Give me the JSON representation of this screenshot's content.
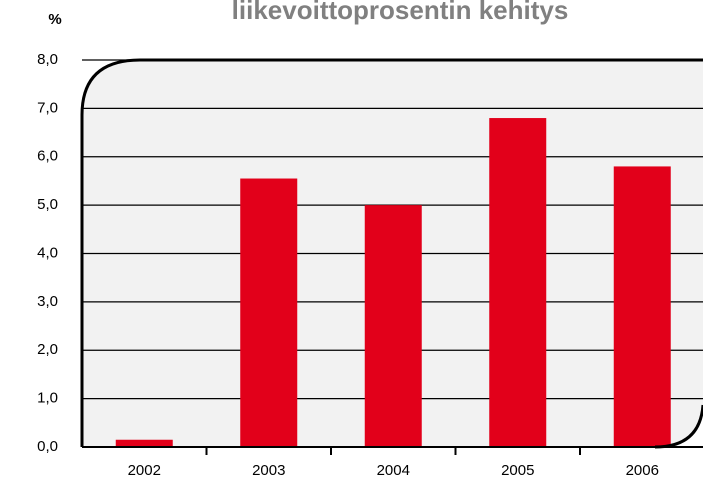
{
  "chart_data": {
    "type": "bar",
    "title": "liikevoittoprosentin kehitys",
    "y_label": "%",
    "categories": [
      "2002",
      "2003",
      "2004",
      "2005",
      "2006"
    ],
    "values": [
      0.15,
      5.55,
      5.0,
      6.8,
      5.8
    ],
    "color": "#e2001a",
    "ylim": [
      0,
      8
    ],
    "yticks": [
      {
        "value": 0,
        "label": "0,0"
      },
      {
        "value": 1,
        "label": "1,0"
      },
      {
        "value": 2,
        "label": "2,0"
      },
      {
        "value": 3,
        "label": "3,0"
      },
      {
        "value": 4,
        "label": "4,0"
      },
      {
        "value": 5,
        "label": "5,0"
      },
      {
        "value": 6,
        "label": "6,0"
      },
      {
        "value": 7,
        "label": "7,0"
      },
      {
        "value": 8,
        "label": "8,0"
      }
    ],
    "grid": true
  }
}
